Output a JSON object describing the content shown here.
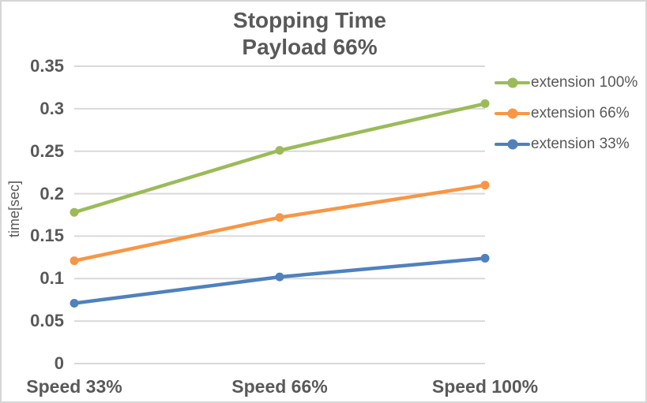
{
  "colors": {
    "text": "#595959",
    "gridline": "#d9d9d9",
    "border": "#d6d6d6",
    "background": "#ffffff"
  },
  "chart_data": {
    "type": "line",
    "title": "Stopping Time",
    "subtitle": "Payload 66%",
    "categories": [
      "Speed 33%",
      "Speed 66%",
      "Speed 100%"
    ],
    "series": [
      {
        "name": "extension 100%",
        "color": "#9bbb59",
        "values": [
          0.178,
          0.251,
          0.306
        ]
      },
      {
        "name": "extension 66%",
        "color": "#f79646",
        "values": [
          0.121,
          0.172,
          0.21
        ]
      },
      {
        "name": "extension 33%",
        "color": "#4f81bd",
        "values": [
          0.071,
          0.102,
          0.124
        ]
      }
    ],
    "xlabel": "",
    "ylabel": "time[sec]",
    "ylim": [
      0,
      0.35
    ],
    "ytick_step": 0.05,
    "ytick_labels": [
      "0.35",
      "0.3",
      "0.25",
      "0.2",
      "0.15",
      "0.1",
      "0.05",
      "0"
    ],
    "grid": true,
    "legend_position": "right",
    "marker": "circle",
    "line_width": 4.5
  }
}
